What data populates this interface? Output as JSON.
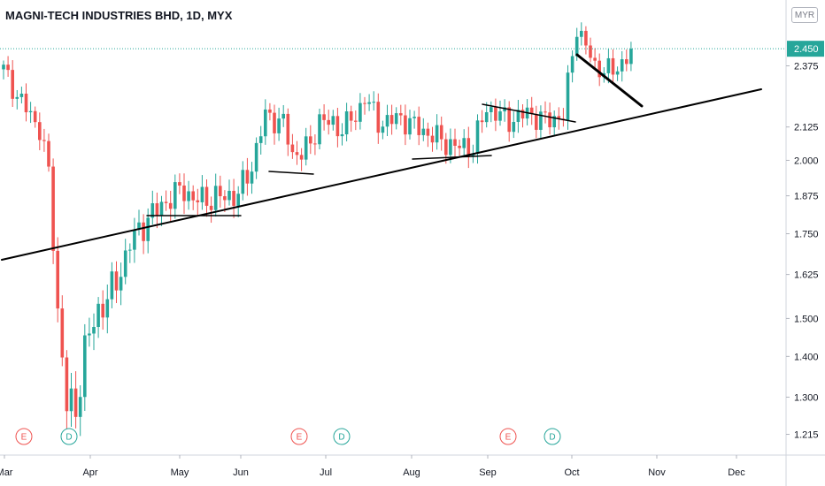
{
  "header": {
    "title": "MAGNI-TECH INDUSTRIES BHD, 1D, MYX",
    "currency": "MYR"
  },
  "chart_data": {
    "type": "candlestick",
    "title": "MAGNI-TECH INDUSTRIES BHD, 1D, MYX",
    "y_scale": "log",
    "ylim": [
      1.17,
      2.66
    ],
    "y_ticks": [
      "1.215",
      "1.300",
      "1.400",
      "1.500",
      "1.625",
      "1.750",
      "1.875",
      "2.000",
      "2.125",
      "2.375"
    ],
    "x_ticks": [
      "Mar",
      "Apr",
      "May",
      "Jun",
      "Jul",
      "Aug",
      "Sep",
      "Oct",
      "Nov",
      "Dec"
    ],
    "last_price": "2.450",
    "colors": {
      "up": "#26a69a",
      "down": "#ef5350",
      "trendline": "#000000",
      "price_label": "#26a69a",
      "earnings": "#ef5350",
      "dividend": "#26a69a"
    },
    "events": [
      {
        "type": "earnings",
        "label": "E"
      },
      {
        "type": "dividend",
        "label": "D"
      },
      {
        "type": "earnings",
        "label": "E"
      },
      {
        "type": "dividend",
        "label": "D"
      },
      {
        "type": "earnings",
        "label": "E"
      },
      {
        "type": "dividend",
        "label": "D"
      }
    ]
  }
}
